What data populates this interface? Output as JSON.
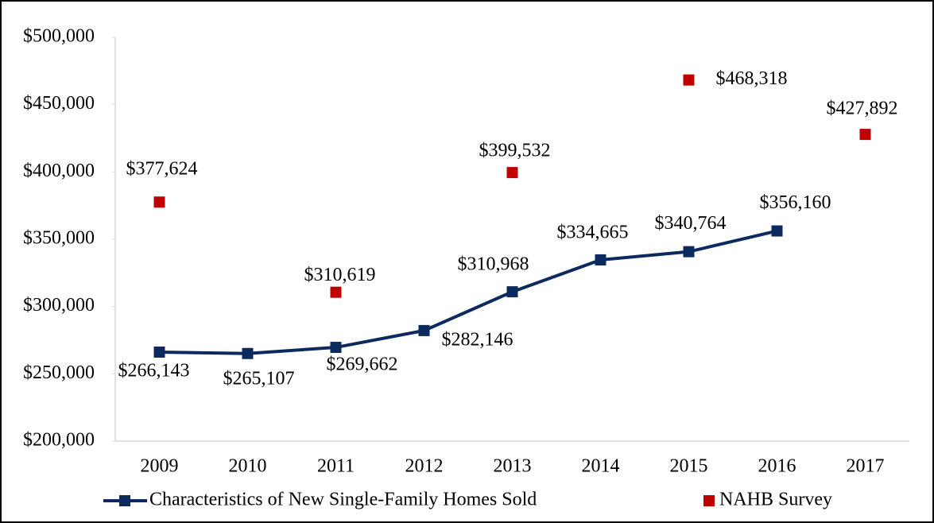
{
  "chart_data": {
    "type": "line",
    "categories": [
      "2009",
      "2010",
      "2011",
      "2012",
      "2013",
      "2014",
      "2015",
      "2016",
      "2017"
    ],
    "series": [
      {
        "name": "Characteristics of New Single-Family Homes Sold",
        "color": "#0d2a5e",
        "style": "line-with-markers",
        "values": [
          266143,
          265107,
          269662,
          282146,
          310968,
          334665,
          340764,
          356160,
          null
        ],
        "value_labels": [
          "$266,143",
          "$265,107",
          "$269,662",
          "$282,146",
          "$310,968",
          "$334,665",
          "$340,764",
          "$356,160",
          null
        ]
      },
      {
        "name": "NAHB Survey",
        "color": "#c00000",
        "style": "markers",
        "values": [
          377624,
          null,
          310619,
          null,
          399532,
          null,
          468318,
          null,
          427892
        ],
        "value_labels": [
          "$377,624",
          null,
          "$310,619",
          null,
          "$399,532",
          null,
          "$468,318",
          null,
          "$427,892"
        ]
      }
    ],
    "ylim": [
      200000,
      500000
    ],
    "yticks": [
      {
        "value": 200000,
        "label": "$200,000"
      },
      {
        "value": 250000,
        "label": "$250,000"
      },
      {
        "value": 300000,
        "label": "$300,000"
      },
      {
        "value": 350000,
        "label": "$350,000"
      },
      {
        "value": 400000,
        "label": "$400,000"
      },
      {
        "value": 450000,
        "label": "$450,000"
      },
      {
        "value": 500000,
        "label": "$500,000"
      }
    ],
    "legend": "bottom"
  }
}
